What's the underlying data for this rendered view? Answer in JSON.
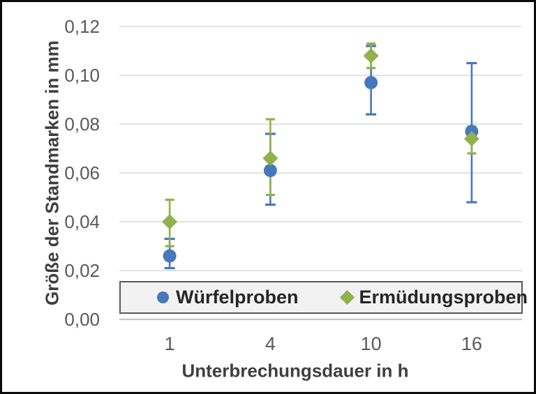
{
  "chart_data": {
    "type": "scatter",
    "title": "",
    "xlabel": "Unterbrechungsdauer in h",
    "ylabel": "Größe der Standmarken in mm",
    "categories": [
      1,
      4,
      10,
      16
    ],
    "x_tick_labels": [
      "1",
      "4",
      "10",
      "16"
    ],
    "y_tick_values": [
      0,
      0.02,
      0.04,
      0.06,
      0.08,
      0.1,
      0.12
    ],
    "y_tick_labels": [
      "0,00",
      "0,02",
      "0,04",
      "0,06",
      "0,08",
      "0,10",
      "0,12"
    ],
    "ylim": [
      0,
      0.12
    ],
    "grid": true,
    "legend_position": "bottom-inside-horizontal",
    "decimal_separator": ",",
    "colors": {
      "gridline": "#d9d9d9",
      "axis_line": "#c6c6c6",
      "tick_text": "#595959",
      "title_text": "#3f3f3f",
      "legend_text": "#262626",
      "legend_bg": "#f2f2f2",
      "legend_border": "#595959",
      "series_blue": "#4778be",
      "series_green": "#90b14d"
    },
    "series": [
      {
        "name": "Würfelproben",
        "marker": "circle",
        "color": "#4778be",
        "values": [
          0.026,
          0.061,
          0.097,
          0.077
        ],
        "error_low": [
          0.021,
          0.047,
          0.084,
          0.048
        ],
        "error_high": [
          0.033,
          0.076,
          0.112,
          0.105
        ]
      },
      {
        "name": "Ermüdungsproben",
        "marker": "diamond",
        "color": "#90b14d",
        "values": [
          0.04,
          0.066,
          0.108,
          0.074
        ],
        "error_low": [
          0.03,
          0.051,
          0.103,
          0.068
        ],
        "error_high": [
          0.049,
          0.082,
          0.113,
          0.079
        ]
      }
    ]
  }
}
